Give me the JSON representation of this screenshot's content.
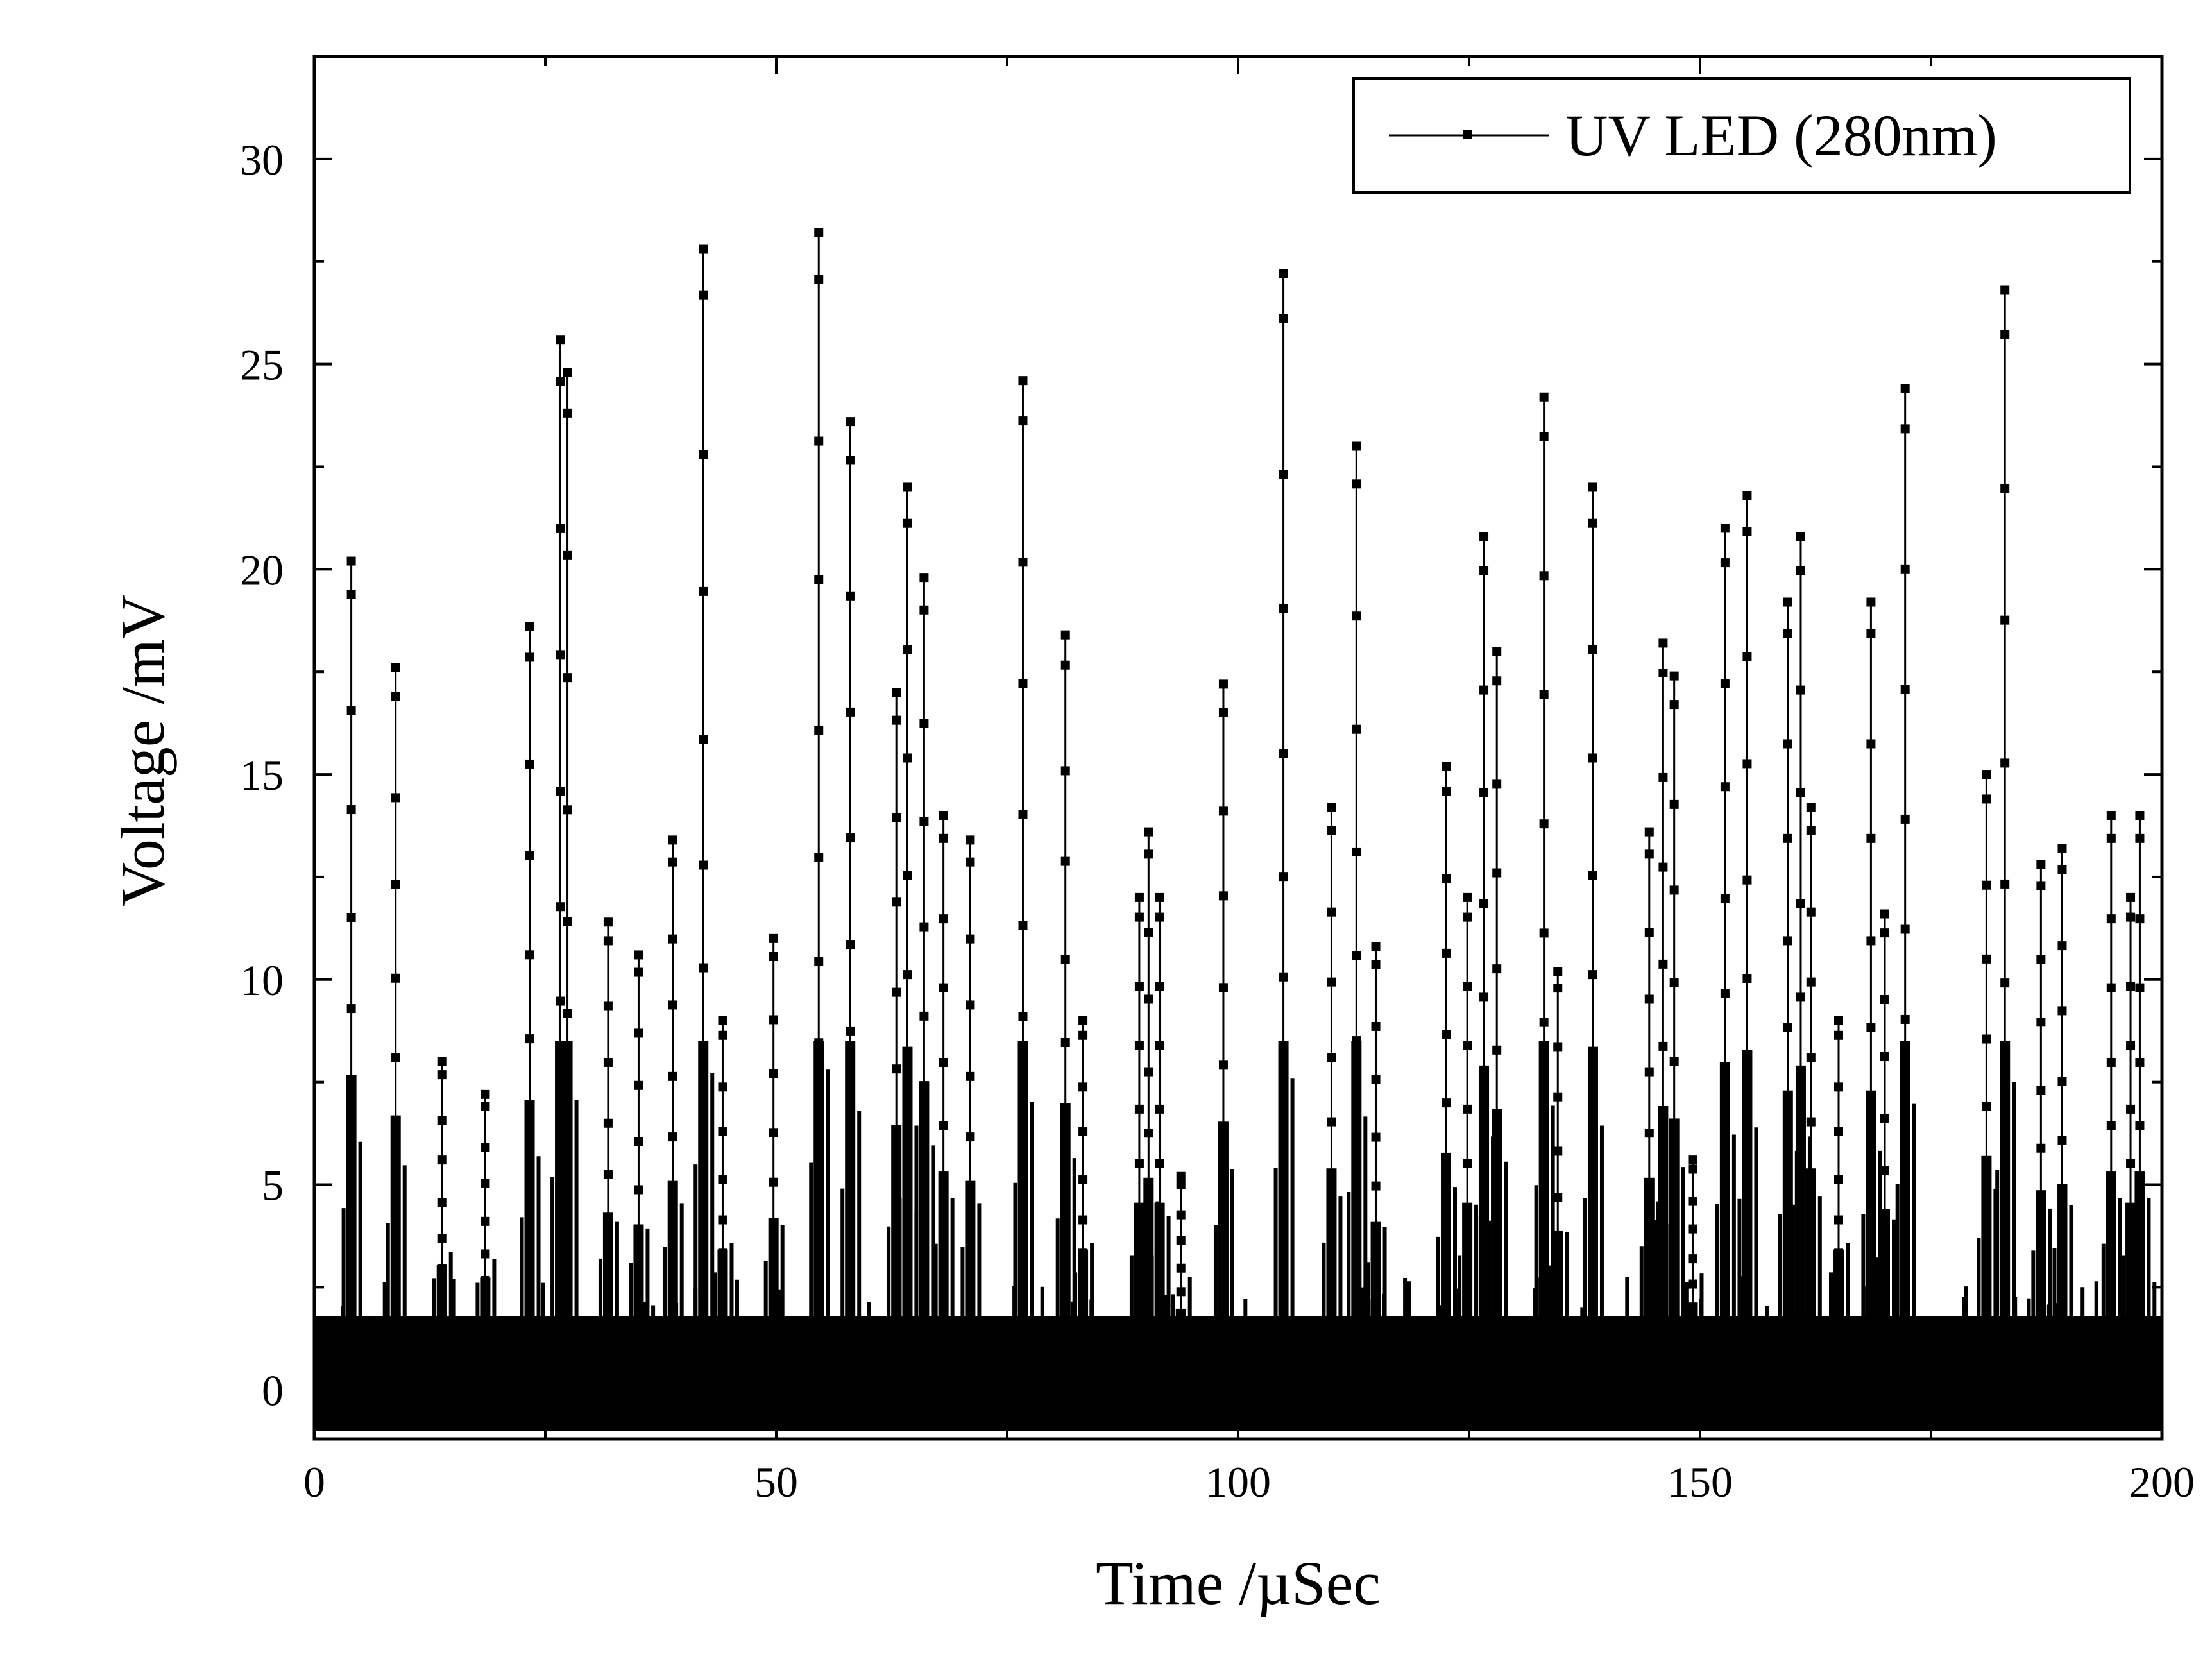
{
  "chart_data": {
    "type": "line",
    "xlabel": "Time /µSec",
    "ylabel": "Voltage /mV",
    "xlim": [
      0,
      200
    ],
    "ylim": [
      -1.2,
      32.5
    ],
    "x_ticks": [
      0,
      50,
      100,
      150,
      200
    ],
    "y_ticks": [
      0,
      5,
      10,
      15,
      20,
      25,
      30
    ],
    "grid": false,
    "legend_position": "top-right",
    "noise_band": [
      -1.0,
      1.8
    ],
    "series": [
      {
        "name": "UV LED (280nm)",
        "color": "#000000",
        "marker": "square",
        "peaks": [
          [
            4.0,
            20.2
          ],
          [
            8.8,
            17.6
          ],
          [
            13.8,
            8.0
          ],
          [
            18.5,
            7.2
          ],
          [
            23.3,
            18.6
          ],
          [
            26.6,
            25.6
          ],
          [
            27.4,
            24.8
          ],
          [
            31.8,
            11.4
          ],
          [
            35.1,
            10.6
          ],
          [
            38.8,
            13.4
          ],
          [
            42.1,
            27.8
          ],
          [
            44.2,
            9.0
          ],
          [
            49.7,
            11.0
          ],
          [
            54.6,
            28.2
          ],
          [
            58.0,
            23.6
          ],
          [
            63.0,
            17.0
          ],
          [
            64.2,
            22.0
          ],
          [
            66.0,
            19.8
          ],
          [
            68.1,
            14.0
          ],
          [
            71.0,
            13.4
          ],
          [
            76.7,
            24.6
          ],
          [
            81.3,
            18.4
          ],
          [
            83.2,
            9.0
          ],
          [
            89.3,
            12.0
          ],
          [
            90.3,
            13.6
          ],
          [
            91.5,
            12.0
          ],
          [
            93.8,
            5.2
          ],
          [
            98.4,
            17.2
          ],
          [
            104.9,
            27.2
          ],
          [
            110.1,
            14.2
          ],
          [
            112.8,
            23.0
          ],
          [
            114.9,
            10.8
          ],
          [
            122.5,
            15.2
          ],
          [
            124.8,
            12.0
          ],
          [
            126.6,
            20.8
          ],
          [
            128.0,
            18.0
          ],
          [
            133.1,
            24.2
          ],
          [
            134.6,
            10.2
          ],
          [
            138.4,
            22.0
          ],
          [
            144.5,
            13.6
          ],
          [
            146.0,
            18.2
          ],
          [
            147.2,
            17.4
          ],
          [
            149.2,
            5.6
          ],
          [
            152.7,
            21.0
          ],
          [
            155.1,
            21.8
          ],
          [
            159.5,
            19.2
          ],
          [
            160.9,
            20.8
          ],
          [
            162.0,
            14.2
          ],
          [
            165.0,
            9.0
          ],
          [
            168.5,
            19.2
          ],
          [
            170.0,
            11.6
          ],
          [
            172.2,
            24.4
          ],
          [
            181.0,
            15.0
          ],
          [
            183.0,
            26.8
          ],
          [
            186.9,
            12.8
          ],
          [
            189.2,
            13.2
          ],
          [
            194.5,
            14.0
          ],
          [
            196.6,
            12.0
          ],
          [
            197.6,
            14.0
          ]
        ]
      }
    ]
  }
}
